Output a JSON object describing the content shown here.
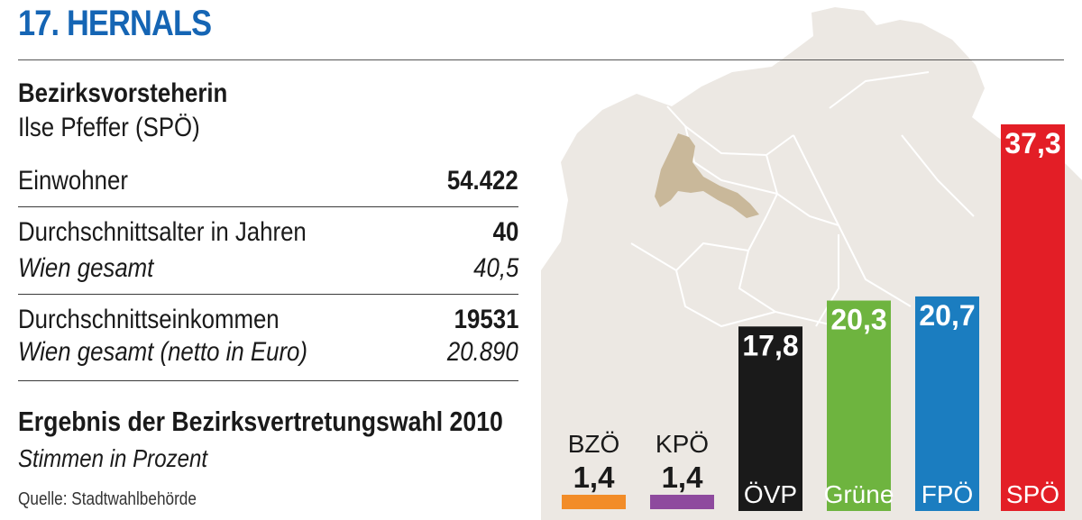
{
  "header": {
    "title": "17. HERNALS"
  },
  "info": {
    "head_title": "Bezirksvorsteherin",
    "head_name": "Ilse Pfeffer (SPÖ)",
    "rows": [
      {
        "label": "Einwohner",
        "value": "54.422"
      },
      {
        "label": "Durchschnittsalter in Jahren",
        "value": "40",
        "sublabel": "Wien gesamt",
        "subvalue": "40,5"
      },
      {
        "label": "Durchschnittseinkommen",
        "value": "19531",
        "sublabel": "Wien gesamt (netto in Euro)",
        "subvalue": "20.890"
      }
    ]
  },
  "election": {
    "title": "Ergebnis der Bezirksvertretungswahl 2010",
    "subtitle": "Stimmen in Prozent",
    "source": "Quelle: Stadtwahlbehörde"
  },
  "colors": {
    "title": "#1565b4",
    "map_fill": "#ece8e3",
    "map_highlight": "#c9b89a"
  },
  "chart_data": {
    "type": "bar",
    "title": "Ergebnis der Bezirksvertretungswahl 2010",
    "subtitle": "Stimmen in Prozent",
    "xlabel": "",
    "ylabel": "",
    "ylim": [
      0,
      37.3
    ],
    "grid": false,
    "legend": "none",
    "categories": [
      "BZÖ",
      "KPÖ",
      "ÖVP",
      "Grüne",
      "FPÖ",
      "SPÖ"
    ],
    "values": [
      1.4,
      1.4,
      17.8,
      20.3,
      20.7,
      37.3
    ],
    "value_labels": [
      "1,4",
      "1,4",
      "17,8",
      "20,3",
      "20,7",
      "37,3"
    ],
    "colors": [
      "#f28c28",
      "#8e4a9e",
      "#1a1a1a",
      "#6eb43f",
      "#1b7dc0",
      "#e31e26"
    ]
  }
}
